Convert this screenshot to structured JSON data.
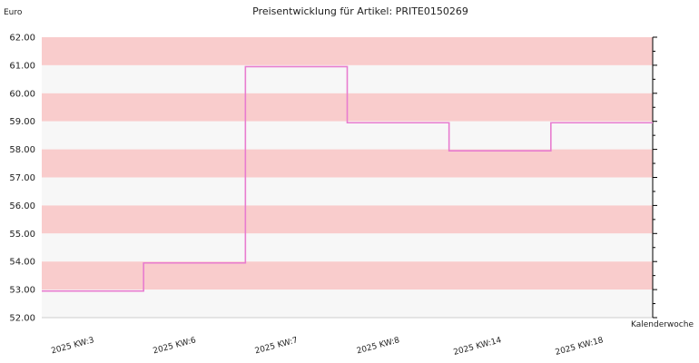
{
  "chart_data": {
    "type": "line",
    "step": true,
    "title": "Preisentwicklung für Artikel: PRITE0150269",
    "ylabel": "Euro",
    "xlabel": "Kalenderwoche",
    "ylim": [
      52.0,
      62.0
    ],
    "yticks": [
      "52.00",
      "53.00",
      "54.00",
      "55.00",
      "56.00",
      "57.00",
      "58.00",
      "59.00",
      "60.00",
      "61.00",
      "62.00"
    ],
    "categories": [
      "2025 KW:3",
      "2025 KW:6",
      "2025 KW:7",
      "2025 KW:8",
      "2025 KW:14",
      "2025 KW:18"
    ],
    "series": [
      {
        "values": [
          52.95,
          53.95,
          60.95,
          58.95,
          57.95,
          58.95
        ]
      }
    ],
    "colors": {
      "band": "#f9cccc",
      "band_alt": "#f7f7f7",
      "line": "#e87ccf",
      "axis": "#000000"
    }
  }
}
